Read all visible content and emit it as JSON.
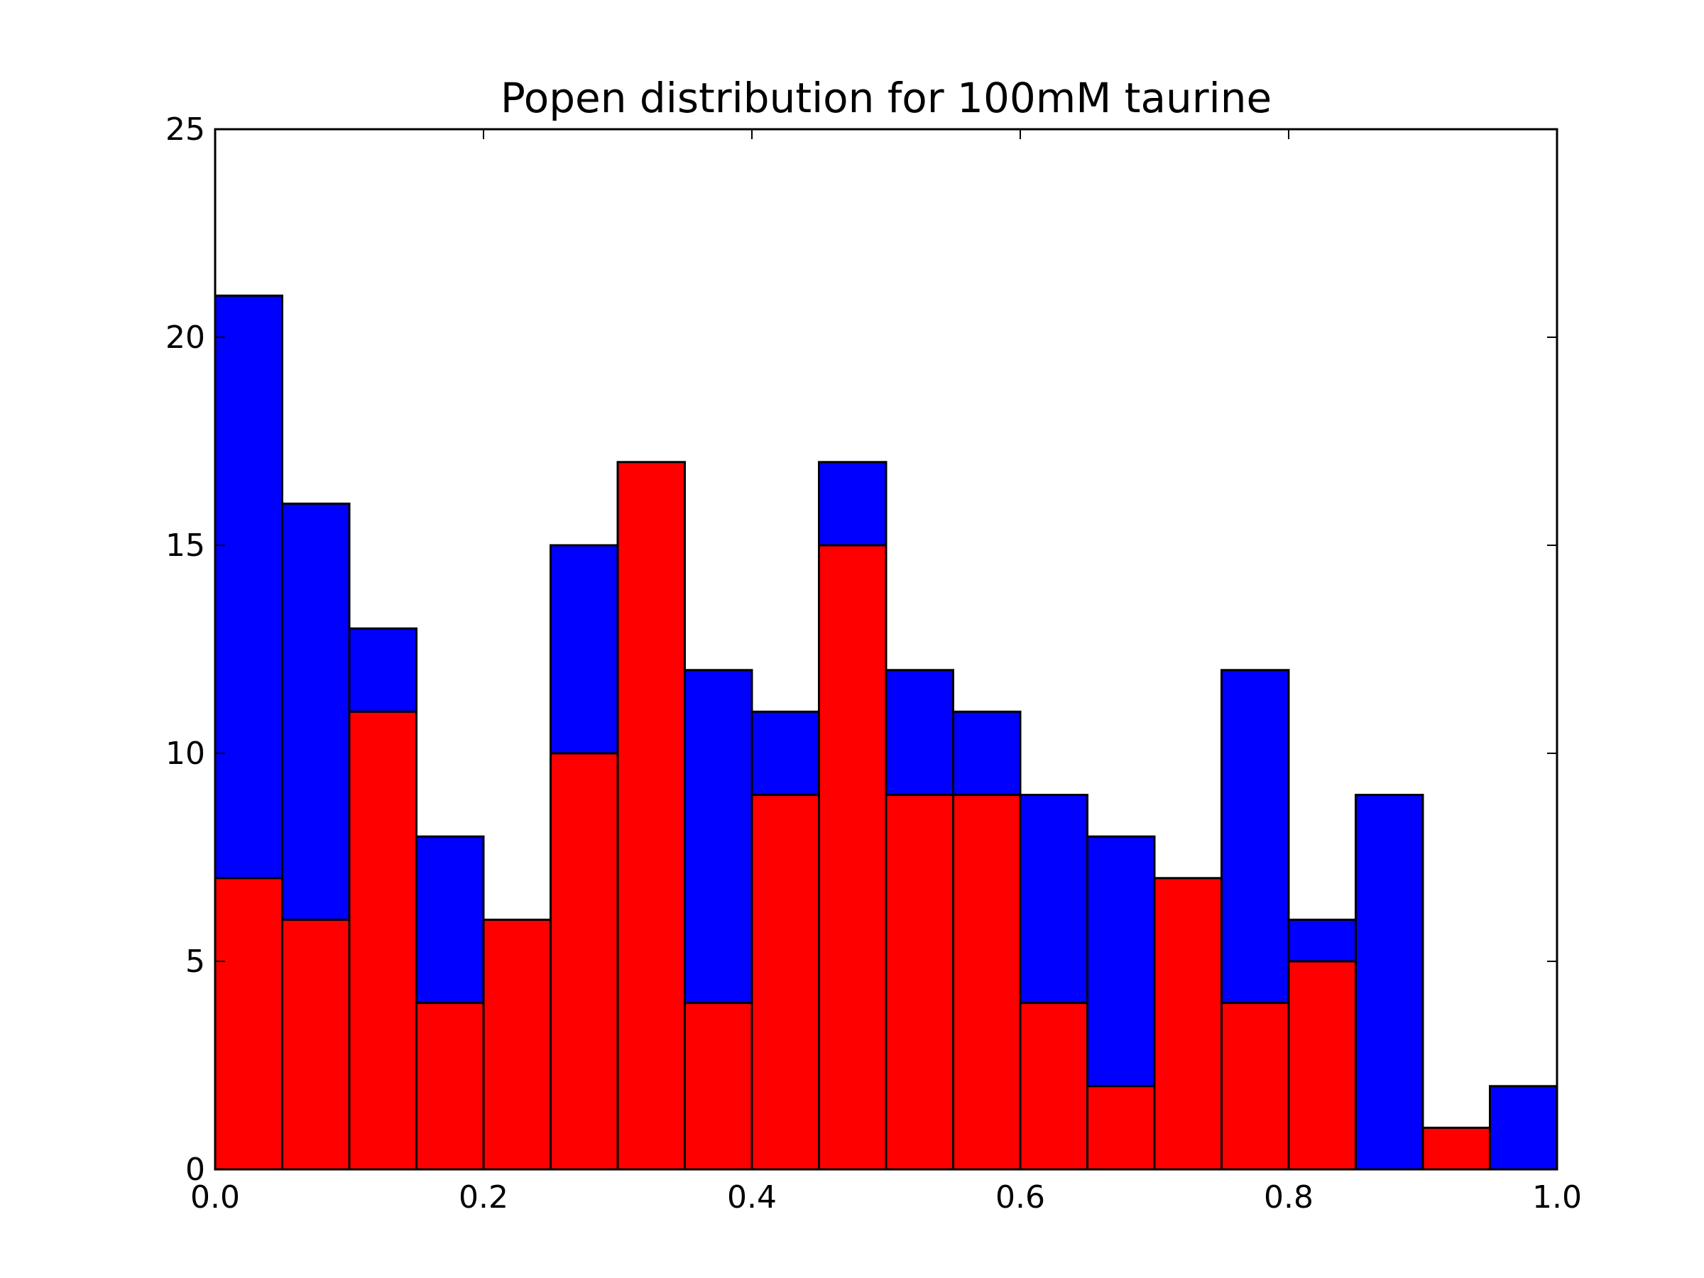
{
  "chart_data": {
    "type": "bar",
    "title": "Popen distribution for 100mM taurine",
    "xlabel": "",
    "ylabel": "",
    "xlim": [
      0.0,
      1.0
    ],
    "ylim": [
      0,
      25
    ],
    "grid": false,
    "bin_edges": [
      0.0,
      0.05,
      0.1,
      0.15,
      0.2,
      0.25,
      0.3,
      0.35,
      0.4,
      0.45,
      0.5,
      0.55,
      0.6,
      0.65,
      0.7,
      0.75,
      0.8,
      0.85,
      0.9,
      0.95,
      1.0
    ],
    "series": [
      {
        "color": "#0000ff",
        "values": [
          21,
          16,
          13,
          8,
          0,
          15,
          0,
          12,
          11,
          17,
          12,
          11,
          9,
          8,
          0,
          12,
          6,
          9,
          0,
          2
        ]
      },
      {
        "color": "#ff0000",
        "values": [
          7,
          6,
          11,
          4,
          6,
          10,
          17,
          4,
          9,
          15,
          9,
          9,
          4,
          2,
          7,
          4,
          5,
          0,
          1,
          0
        ]
      }
    ],
    "xticks": [
      "0.0",
      "0.2",
      "0.4",
      "0.6",
      "0.8",
      "1.0"
    ],
    "yticks": [
      "0",
      "5",
      "10",
      "15",
      "20",
      "25"
    ]
  }
}
